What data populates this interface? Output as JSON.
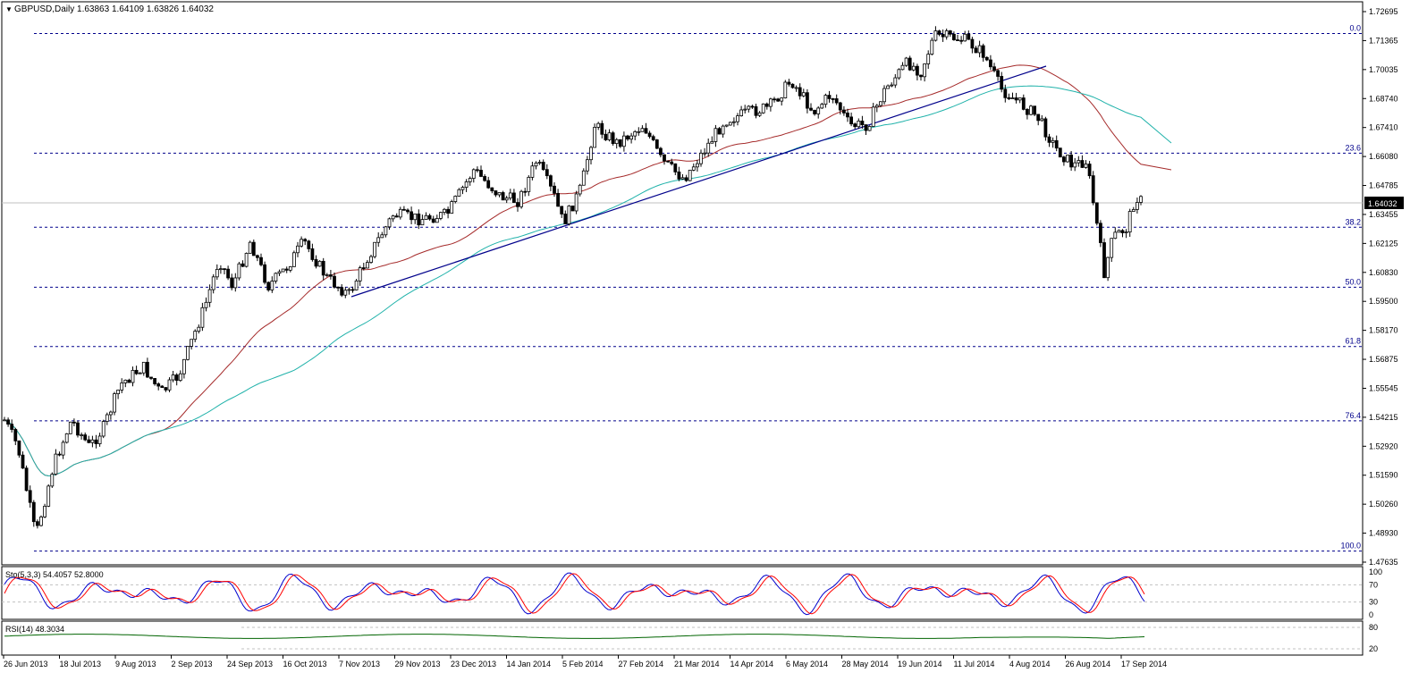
{
  "symbol_info": "GBPUSD,Daily  1.63863 1.64109 1.63826 1.64032",
  "current_price": "1.64032",
  "colors": {
    "candle": "#000000",
    "ma_fast": "#a52a2a",
    "ma_slow": "#20b2aa",
    "trendline": "#00008b",
    "fib": "#00008b",
    "stoch_main": "#0000cd",
    "stoch_signal": "#ff0000",
    "rsi": "#006400"
  },
  "chart_data": [
    {
      "type": "line",
      "title": "GBPUSD,Daily",
      "ohlc_last": {
        "open": 1.63863,
        "high": 1.64109,
        "low": 1.63826,
        "close": 1.64032
      },
      "y_ticks": [
        "1.72695",
        "1.71365",
        "1.70035",
        "1.68740",
        "1.67410",
        "1.66080",
        "1.64785",
        "1.63455",
        "1.62125",
        "1.60830",
        "1.59500",
        "1.58170",
        "1.56875",
        "1.55545",
        "1.54215",
        "1.52920",
        "1.51590",
        "1.50260",
        "1.48930",
        "1.47635"
      ],
      "x_ticks": [
        "26 Jun 2013",
        "18 Jul 2013",
        "9 Aug 2013",
        "2 Sep 2013",
        "24 Sep 2013",
        "16 Oct 2013",
        "7 Nov 2013",
        "29 Nov 2013",
        "23 Dec 2013",
        "14 Jan 2014",
        "5 Feb 2014",
        "27 Feb 2014",
        "21 Mar 2014",
        "14 Apr 2014",
        "6 May 2014",
        "28 May 2014",
        "19 Jun 2014",
        "11 Jul 2014",
        "4 Aug 2014",
        "26 Aug 2014",
        "17 Sep 2014"
      ],
      "fib_levels": [
        {
          "label": "0.0",
          "price": 1.717
        },
        {
          "label": "23.6",
          "price": 1.6625
        },
        {
          "label": "38.2",
          "price": 1.6288
        },
        {
          "label": "50.0",
          "price": 1.6015
        },
        {
          "label": "61.8",
          "price": 1.5745
        },
        {
          "label": "76.4",
          "price": 1.5407
        },
        {
          "label": "100.0",
          "price": 1.4814
        }
      ]
    },
    {
      "type": "line",
      "title": "Sto(5,3,3) 54.4057 52.8000",
      "y_ticks": [
        "100",
        "70",
        "30",
        "0"
      ]
    },
    {
      "type": "line",
      "title": "RSI(14) 48.3034",
      "y_ticks": [
        "80",
        "20"
      ]
    }
  ]
}
